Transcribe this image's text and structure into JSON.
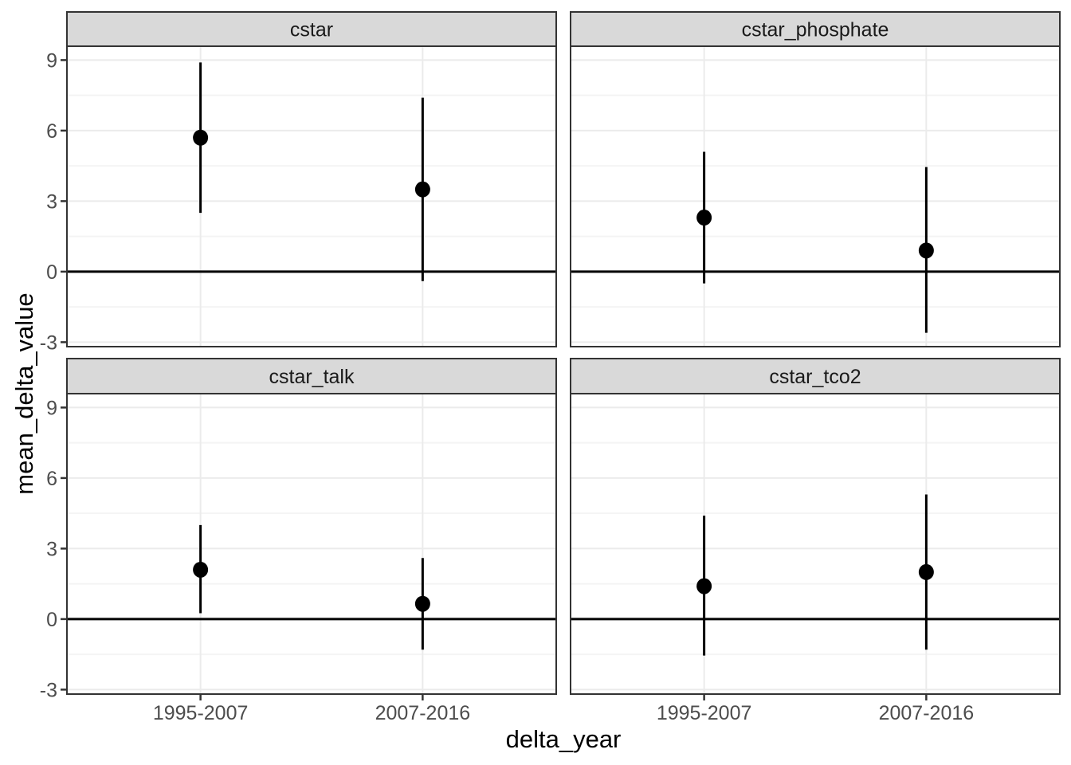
{
  "chart_data": {
    "type": "scatter",
    "subtype": "faceted-pointrange",
    "title": "",
    "xlabel": "delta_year",
    "ylabel": "mean_delta_value",
    "categories": [
      "1995-2007",
      "2007-2016"
    ],
    "y_ticks": [
      -3,
      0,
      3,
      6,
      9
    ],
    "y_minor_ticks": [
      -1.5,
      1.5,
      4.5,
      7.5
    ],
    "ylim": [
      -3.19,
      9.59
    ],
    "hline": 0,
    "grid": true,
    "legend_position": "none",
    "facets": [
      {
        "label": "cstar",
        "points": [
          {
            "x": "1995-2007",
            "mean": 5.7,
            "lower": 2.5,
            "upper": 8.9
          },
          {
            "x": "2007-2016",
            "mean": 3.5,
            "lower": -0.4,
            "upper": 7.4
          }
        ]
      },
      {
        "label": "cstar_phosphate",
        "points": [
          {
            "x": "1995-2007",
            "mean": 2.3,
            "lower": -0.5,
            "upper": 5.1
          },
          {
            "x": "2007-2016",
            "mean": 0.9,
            "lower": -2.6,
            "upper": 4.45
          }
        ]
      },
      {
        "label": "cstar_talk",
        "points": [
          {
            "x": "1995-2007",
            "mean": 2.1,
            "lower": 0.25,
            "upper": 4.0
          },
          {
            "x": "2007-2016",
            "mean": 0.65,
            "lower": -1.3,
            "upper": 2.6
          }
        ]
      },
      {
        "label": "cstar_tco2",
        "points": [
          {
            "x": "1995-2007",
            "mean": 1.4,
            "lower": -1.55,
            "upper": 4.4
          },
          {
            "x": "2007-2016",
            "mean": 2.0,
            "lower": -1.3,
            "upper": 5.3
          }
        ]
      }
    ],
    "colors": {
      "background": "#FFFFFF",
      "strip_fill": "#D9D9D9",
      "strip_text": "#1A1A1A",
      "panel_border": "#333333",
      "grid_major": "#EBEBEB",
      "grid_minor": "#F4F4F4",
      "tick_mark": "#333333",
      "tick_label": "#4D4D4D",
      "axis_title": "#000000",
      "data_mark": "#000000"
    }
  }
}
